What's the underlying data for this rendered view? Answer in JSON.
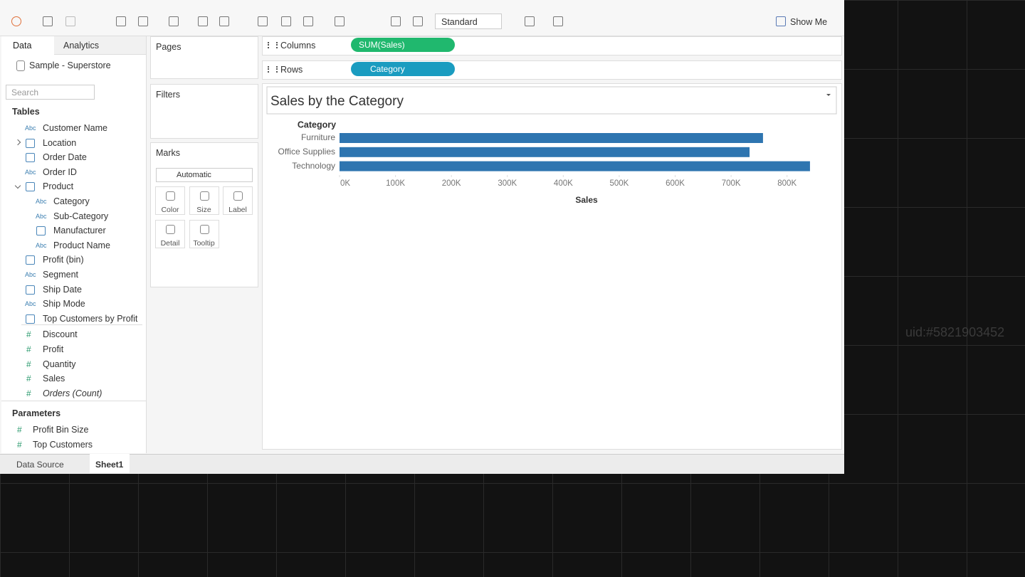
{
  "toolbar": {
    "fit_dropdown": "Standard",
    "show_me": "Show Me"
  },
  "data_pane": {
    "tabs": [
      "Data",
      "Analytics"
    ],
    "data_source": "Sample - Superstore",
    "search_placeholder": "Search",
    "tables_header": "Tables",
    "dimensions": [
      {
        "name": "Customer Name",
        "icon": "Abc"
      },
      {
        "name": "Location",
        "collapsed": true
      },
      {
        "name": "Order Date"
      },
      {
        "name": "Order ID",
        "icon": "Abc"
      },
      {
        "name": "Product",
        "children": [
          {
            "name": "Category",
            "icon": "Abc"
          },
          {
            "name": "Sub-Category",
            "icon": "Abc"
          },
          {
            "name": "Manufacturer"
          },
          {
            "name": "Product Name",
            "icon": "Abc"
          }
        ]
      },
      {
        "name": "Profit (bin)"
      },
      {
        "name": "Segment",
        "icon": "Abc"
      },
      {
        "name": "Ship Date"
      },
      {
        "name": "Ship Mode",
        "icon": "Abc"
      },
      {
        "name": "Top Customers by Profit"
      }
    ],
    "measures": [
      {
        "name": "Discount",
        "icon": "#"
      },
      {
        "name": "Profit",
        "icon": "#"
      },
      {
        "name": "Quantity",
        "icon": "#"
      },
      {
        "name": "Sales",
        "icon": "#"
      },
      {
        "name": "Orders (Count)",
        "icon": "#",
        "italic": true
      }
    ],
    "parameters_header": "Parameters",
    "parameters": [
      {
        "name": "Profit Bin Size",
        "icon": "#"
      },
      {
        "name": "Top Customers",
        "icon": "#"
      }
    ]
  },
  "cards": {
    "pages": "Pages",
    "filters": "Filters",
    "marks": "Marks",
    "mark_type": "Automatic",
    "mark_buttons": [
      "Color",
      "Size",
      "Label",
      "Detail",
      "Tooltip"
    ]
  },
  "shelves": {
    "columns": {
      "label": "Columns",
      "pill": "SUM(Sales)"
    },
    "rows": {
      "label": "Rows",
      "pill": "Category"
    }
  },
  "chart_data": {
    "type": "hbar",
    "title": "Sales by the Category",
    "category_header": "Category",
    "x_label": "Sales",
    "categories": [
      "Furniture",
      "Office Supplies",
      "Technology"
    ],
    "values": [
      757000,
      733000,
      841000
    ],
    "color": "#2e75b0",
    "xlim": [
      0,
      850000
    ],
    "xticks": [
      {
        "value": 0,
        "label": "0K"
      },
      {
        "value": 100000,
        "label": "100K"
      },
      {
        "value": 200000,
        "label": "200K"
      },
      {
        "value": 300000,
        "label": "300K"
      },
      {
        "value": 400000,
        "label": "400K"
      },
      {
        "value": 500000,
        "label": "500K"
      },
      {
        "value": 600000,
        "label": "600K"
      },
      {
        "value": 700000,
        "label": "700K"
      },
      {
        "value": 800000,
        "label": "800K"
      }
    ]
  },
  "sheet_tabs": {
    "data_source": "Data Source",
    "sheets": [
      "Sheet1"
    ]
  },
  "watermark": "uid:#5821903452"
}
